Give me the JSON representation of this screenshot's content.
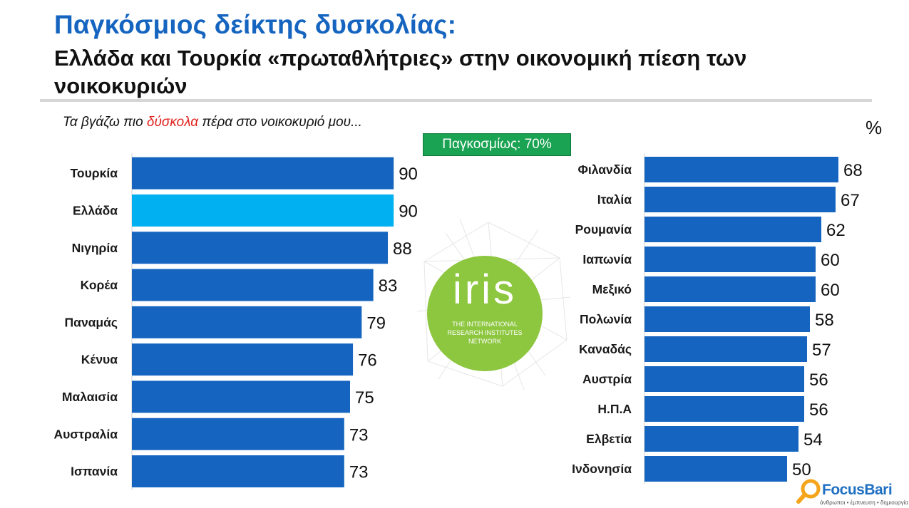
{
  "header": {
    "title": "Παγκόσμιος δείκτης δυσκολίας:",
    "subtitle": "Ελλάδα και Τουρκία «πρωταθλήτριες» στην οικονομική πίεση των νοικοκυριών"
  },
  "question": {
    "before": "Τα βγάζω πιο ",
    "highlight": "δύσκολα",
    "after": " πέρα στο νοικοκυριό μου..."
  },
  "unit_label": "%",
  "global_badge": "Παγκοσμίως: 70%",
  "iris_logo": {
    "word": "iris",
    "line1": "THE INTERNATIONAL",
    "line2": "RESEARCH INSTITUTES",
    "line3": "NETWORK"
  },
  "brand": {
    "name": "FocusBari",
    "tagline": "άνθρωποι • έμπνευση • δημιουργία"
  },
  "colors": {
    "bar": "#1565c0",
    "highlight_bar": "#00b0f0",
    "title": "#1565c0",
    "badge": "#1aa352",
    "logo_green": "#8dc63f"
  },
  "chart_data": [
    {
      "type": "bar",
      "orientation": "horizontal",
      "categories": [
        "Τουρκία",
        "Ελλάδα",
        "Νιγηρία",
        "Κορέα",
        "Παναμάς",
        "Κένυα",
        "Μαλαισία",
        "Αυστραλία",
        "Ισπανία"
      ],
      "values": [
        90,
        90,
        88,
        83,
        79,
        76,
        75,
        73,
        73
      ],
      "highlight_index": 1,
      "xlim": [
        0,
        100
      ],
      "unit": "%"
    },
    {
      "type": "bar",
      "orientation": "horizontal",
      "categories": [
        "Φιλανδία",
        "Ιταλία",
        "Ρουμανία",
        "Ιαπωνία",
        "Μεξικό",
        "Πολωνία",
        "Καναδάς",
        "Αυστρία",
        "Η.Π.Α",
        "Ελβετία",
        "Ινδονησία"
      ],
      "values": [
        68,
        67,
        62,
        60,
        60,
        58,
        57,
        56,
        56,
        54,
        50
      ],
      "xlim": [
        0,
        100
      ],
      "unit": "%"
    }
  ]
}
